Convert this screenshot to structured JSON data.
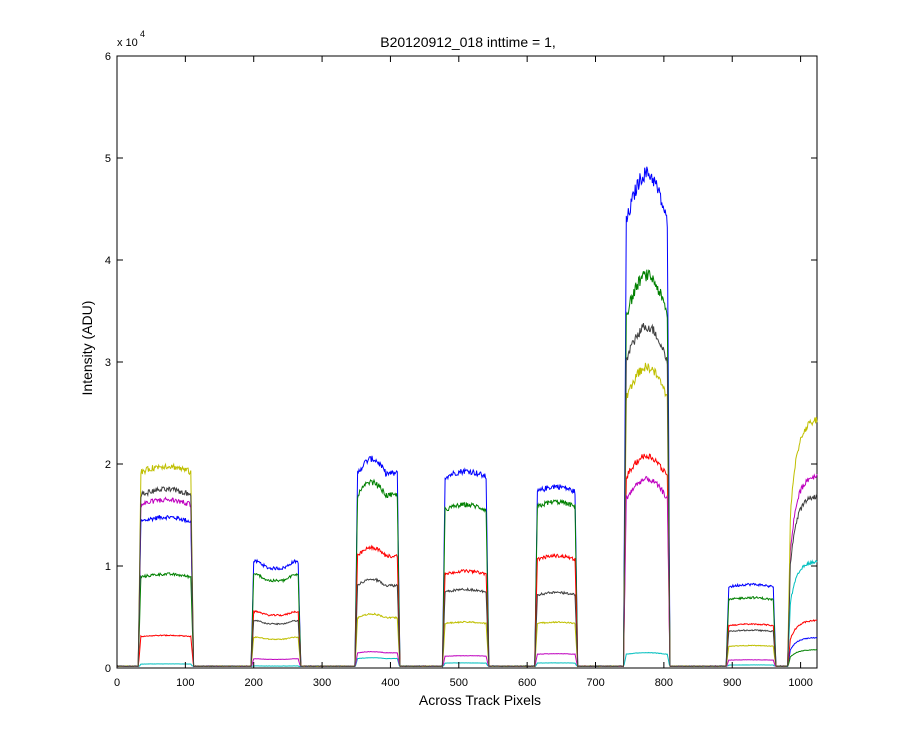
{
  "chart_data": {
    "type": "line",
    "title": "B20120912_018 inttime = 1,",
    "xlabel": "Across Track Pixels",
    "ylabel": "Intensity (ADU)",
    "xlim": [
      0,
      1024
    ],
    "ylim": [
      0,
      60000
    ],
    "y_scale_label": "x 10",
    "y_scale_exponent": "4",
    "x_ticks": [
      0,
      100,
      200,
      300,
      400,
      500,
      600,
      700,
      800,
      900,
      1000
    ],
    "y_ticks": [
      0,
      10000,
      20000,
      30000,
      40000,
      50000,
      60000
    ],
    "x_tick_labels": [
      "0",
      "100",
      "200",
      "300",
      "400",
      "500",
      "600",
      "700",
      "800",
      "900",
      "1000"
    ],
    "y_tick_labels": [
      "0",
      "1",
      "2",
      "3",
      "4",
      "5",
      "6"
    ],
    "grid": false,
    "legend": "none",
    "bands": [
      {
        "x0": 35,
        "x1": 108
      },
      {
        "x0": 200,
        "x1": 265
      },
      {
        "x0": 352,
        "x1": 410
      },
      {
        "x0": 480,
        "x1": 540
      },
      {
        "x0": 615,
        "x1": 670
      },
      {
        "x0": 745,
        "x1": 805
      },
      {
        "x0": 895,
        "x1": 960
      },
      {
        "x0": 985,
        "x1": 1024
      }
    ],
    "series": [
      {
        "color": "#0000ff",
        "levels": [
          14800,
          10400,
          20500,
          19300,
          17800,
          48500,
          8200,
          3000
        ]
      },
      {
        "color": "#008000",
        "levels": [
          9200,
          9100,
          18200,
          16000,
          16300,
          38500,
          6900,
          1800
        ]
      },
      {
        "color": "#ff0000",
        "levels": [
          3200,
          5500,
          11800,
          9500,
          11000,
          20800,
          4300,
          4700
        ]
      },
      {
        "color": "#00bfbf",
        "levels": [
          400,
          200,
          1000,
          500,
          500,
          1500,
          300,
          10500
        ]
      },
      {
        "color": "#bf00bf",
        "levels": [
          16500,
          900,
          1600,
          1200,
          1400,
          18500,
          800,
          19000
        ]
      },
      {
        "color": "#bfbf00",
        "levels": [
          19800,
          3000,
          5300,
          4500,
          4500,
          29500,
          2200,
          24500
        ]
      },
      {
        "color": "#404040",
        "levels": [
          17500,
          4600,
          8700,
          7700,
          7400,
          33500,
          3700,
          17000
        ]
      }
    ]
  }
}
